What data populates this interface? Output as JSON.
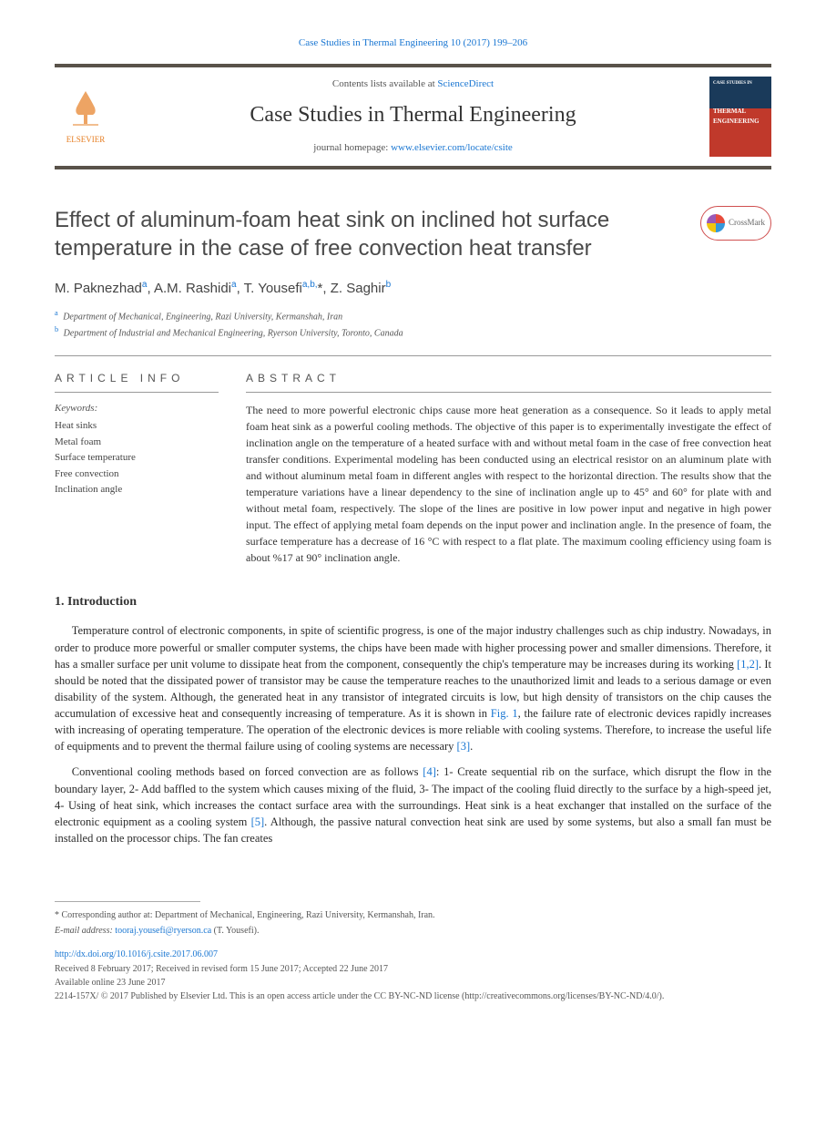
{
  "journal_ref": "Case Studies in Thermal Engineering 10 (2017) 199–206",
  "header": {
    "publisher": "ELSEVIER",
    "contents_prefix": "Contents lists available at ",
    "contents_link": "ScienceDirect",
    "journal_name": "Case Studies in Thermal Engineering",
    "homepage_prefix": "journal homepage: ",
    "homepage_url": "www.elsevier.com/locate/csite",
    "cover_top": "CASE STUDIES IN",
    "cover_main": "THERMAL ENGINEERING"
  },
  "crossmark": "CrossMark",
  "title": "Effect of aluminum-foam heat sink on inclined hot surface temperature in the case of free convection heat transfer",
  "authors_html": "M. Paknezhad<sup>a</sup>, A.M. Rashidi<sup>a</sup>, T. Yousefi<sup>a,b,</sup>*, Z. Saghir<sup>b</sup>",
  "affiliations": [
    {
      "sup": "a",
      "text": "Department of Mechanical, Engineering, Razi University, Kermanshah, Iran"
    },
    {
      "sup": "b",
      "text": "Department of Industrial and Mechanical Engineering, Ryerson University, Toronto, Canada"
    }
  ],
  "article_info_heading": "ARTICLE INFO",
  "abstract_heading": "ABSTRACT",
  "keywords_label": "Keywords:",
  "keywords": [
    "Heat sinks",
    "Metal foam",
    "Surface temperature",
    "Free convection",
    "Inclination angle"
  ],
  "abstract": "The need to more powerful electronic chips cause more heat generation as a consequence. So it leads to apply metal foam heat sink as a powerful cooling methods. The objective of this paper is to experimentally investigate the effect of inclination angle on the temperature of a heated surface with and without metal foam in the case of free convection heat transfer conditions. Experimental modeling has been conducted using an electrical resistor on an aluminum plate with and without aluminum metal foam in different angles with respect to the horizontal direction. The results show that the temperature variations have a linear dependency to the sine of inclination angle up to 45° and 60° for plate with and without metal foam, respectively. The slope of the lines are positive in low power input and negative in high power input. The effect of applying metal foam depends on the input power and inclination angle. In the presence of foam, the surface temperature has a decrease of 16 °C with respect to a flat plate. The maximum cooling efficiency using foam is about %17 at 90° inclination angle.",
  "section1_heading": "1. Introduction",
  "para1_pre": "Temperature control of electronic components, in spite of scientific progress, is one of the major industry challenges such as chip industry. Nowadays, in order to produce more powerful or smaller computer systems, the chips have been made with higher processing power and smaller dimensions. Therefore, it has a smaller surface per unit volume to dissipate heat from the component, consequently the chip's temperature may be increases during its working ",
  "ref_12": "[1,2]",
  "para1_mid": ". It should be noted that the dissipated power of transistor may be cause the temperature reaches to the unauthorized limit and leads to a serious damage or even disability of the system. Although, the generated heat in any transistor of integrated circuits is low, but high density of transistors on the chip causes the accumulation of excessive heat and consequently increasing of temperature. As it is shown in ",
  "fig1": "Fig. 1",
  "para1_post": ", the failure rate of electronic devices rapidly increases with increasing of operating temperature. The operation of the electronic devices is more reliable with cooling systems. Therefore, to increase the useful life of equipments and to prevent the thermal failure using of cooling systems are necessary ",
  "ref_3": "[3]",
  "para1_end": ".",
  "para2_pre": "Conventional cooling methods based on forced convection are as follows ",
  "ref_4": "[4]",
  "para2_mid": ": 1- Create sequential rib on the surface, which disrupt the flow in the boundary layer, 2- Add baffled to the system which causes mixing of the fluid, 3- The impact of the cooling fluid directly to the surface by a high-speed jet, 4- Using of heat sink, which increases the contact surface area with the surroundings. Heat sink is a heat exchanger that installed on the surface of the electronic equipment as a cooling system ",
  "ref_5": "[5]",
  "para2_end": ". Although, the passive natural convection heat sink are used by some systems, but also a small fan must be installed on the processor chips. The fan creates",
  "corresponding": "* Corresponding author at: Department of Mechanical, Engineering, Razi University, Kermanshah, Iran.",
  "email_label": "E-mail address: ",
  "email": "tooraj.yousefi@ryerson.ca",
  "email_suffix": " (T. Yousefi).",
  "doi": "http://dx.doi.org/10.1016/j.csite.2017.06.007",
  "received": "Received 8 February 2017; Received in revised form 15 June 2017; Accepted 22 June 2017",
  "available": "Available online 23 June 2017",
  "license": "2214-157X/ © 2017 Published by Elsevier Ltd. This is an open access article under the CC BY-NC-ND license (http://creativecommons.org/licenses/BY-NC-ND/4.0/).",
  "colors": {
    "link": "#1976d2",
    "rule": "#59524a",
    "text": "#2a2a2a"
  }
}
